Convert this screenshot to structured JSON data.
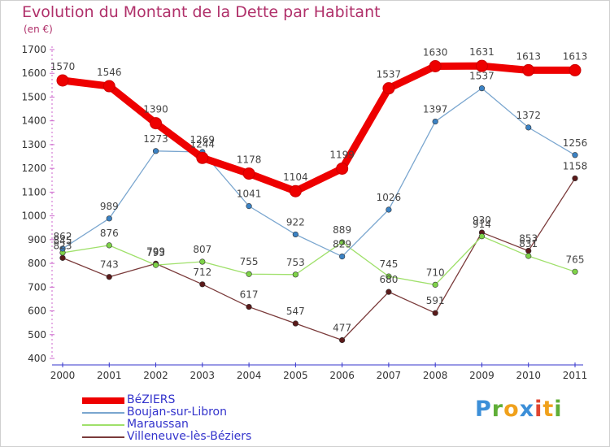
{
  "chart_data": {
    "type": "line",
    "title": "Evolution du Montant de la Dette par Habitant",
    "unit_label": "(en €)",
    "xlabel": "",
    "ylabel": "",
    "x": [
      "2000",
      "2001",
      "2002",
      "2003",
      "2004",
      "2005",
      "2006",
      "2007",
      "2008",
      "2009",
      "2010",
      "2011"
    ],
    "ylim": [
      400,
      1700
    ],
    "y_ticks": [
      400,
      500,
      600,
      700,
      800,
      900,
      1000,
      1100,
      1200,
      1300,
      1400,
      1500,
      1600,
      1700
    ],
    "grid": false,
    "legend_position": "bottom-left",
    "series": [
      {
        "name": "BéZIERS",
        "color": "#ee0000",
        "values": [
          1570,
          1546,
          1390,
          1244,
          1178,
          1104,
          1199,
          1537,
          1630,
          1631,
          1613,
          1613
        ]
      },
      {
        "name": "Boujan-sur-Libron",
        "color": "#7aa6cf",
        "marker": "#3b82c4",
        "values": [
          862,
          989,
          1273,
          1269,
          1041,
          922,
          829,
          1026,
          1397,
          1537,
          1372,
          1256
        ]
      },
      {
        "name": "Maraussan",
        "color": "#9fe06a",
        "marker": "#7ed348",
        "values": [
          845,
          876,
          793,
          807,
          755,
          753,
          889,
          745,
          710,
          914,
          831,
          765
        ]
      },
      {
        "name": "Villeneuve-lès-Béziers",
        "color": "#7a3a3a",
        "marker": "#5a1a1a",
        "values": [
          823,
          743,
          799,
          712,
          617,
          547,
          477,
          680,
          591,
          930,
          853,
          1158
        ]
      }
    ]
  },
  "brand": {
    "letters": [
      "P",
      "r",
      "o",
      "x",
      "i",
      "t",
      "i"
    ],
    "colors": [
      "#3c8fd8",
      "#5fae37",
      "#f0a11c",
      "#3c8fd8",
      "#e04530",
      "#f0a11c",
      "#5fae37"
    ]
  }
}
